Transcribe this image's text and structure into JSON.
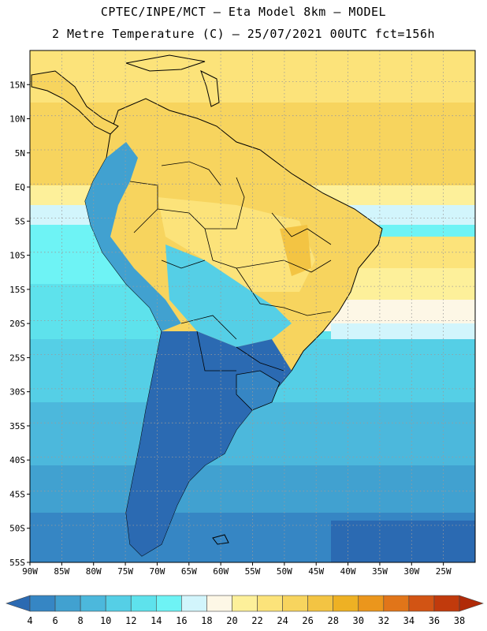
{
  "header": {
    "line1": "CPTEC/INPE/MCT –  Eta Model 8km – MODEL",
    "line2": "2 Metre Temperature (C) – 25/07/2021 00UTC fct=156h"
  },
  "map": {
    "lat_labels": [
      "15N",
      "10N",
      "5N",
      "EQ",
      "5S",
      "10S",
      "15S",
      "20S",
      "25S",
      "30S",
      "35S",
      "40S",
      "45S",
      "50S",
      "55S"
    ],
    "lon_labels": [
      "90W",
      "85W",
      "80W",
      "75W",
      "70W",
      "65W",
      "60W",
      "55W",
      "50W",
      "45W",
      "40W",
      "35W",
      "30W",
      "25W"
    ],
    "lat_range": [
      -55,
      20
    ],
    "lon_range": [
      -90,
      -20
    ]
  },
  "colorbar": {
    "labels": [
      "4",
      "6",
      "8",
      "10",
      "12",
      "14",
      "16",
      "18",
      "20",
      "22",
      "24",
      "26",
      "28",
      "30",
      "32",
      "34",
      "36",
      "38"
    ],
    "colors": [
      "#2b6ab2",
      "#3686c4",
      "#41a1d0",
      "#4cb8dc",
      "#55cfe6",
      "#5ee2ec",
      "#6ef3f5",
      "#d2f5fc",
      "#fdf7e6",
      "#fdf09a",
      "#fce37a",
      "#f7d45e",
      "#f3c443",
      "#eeb124",
      "#eb961c",
      "#e17519",
      "#d25414",
      "#c13a0c",
      "#b02a08"
    ]
  }
}
